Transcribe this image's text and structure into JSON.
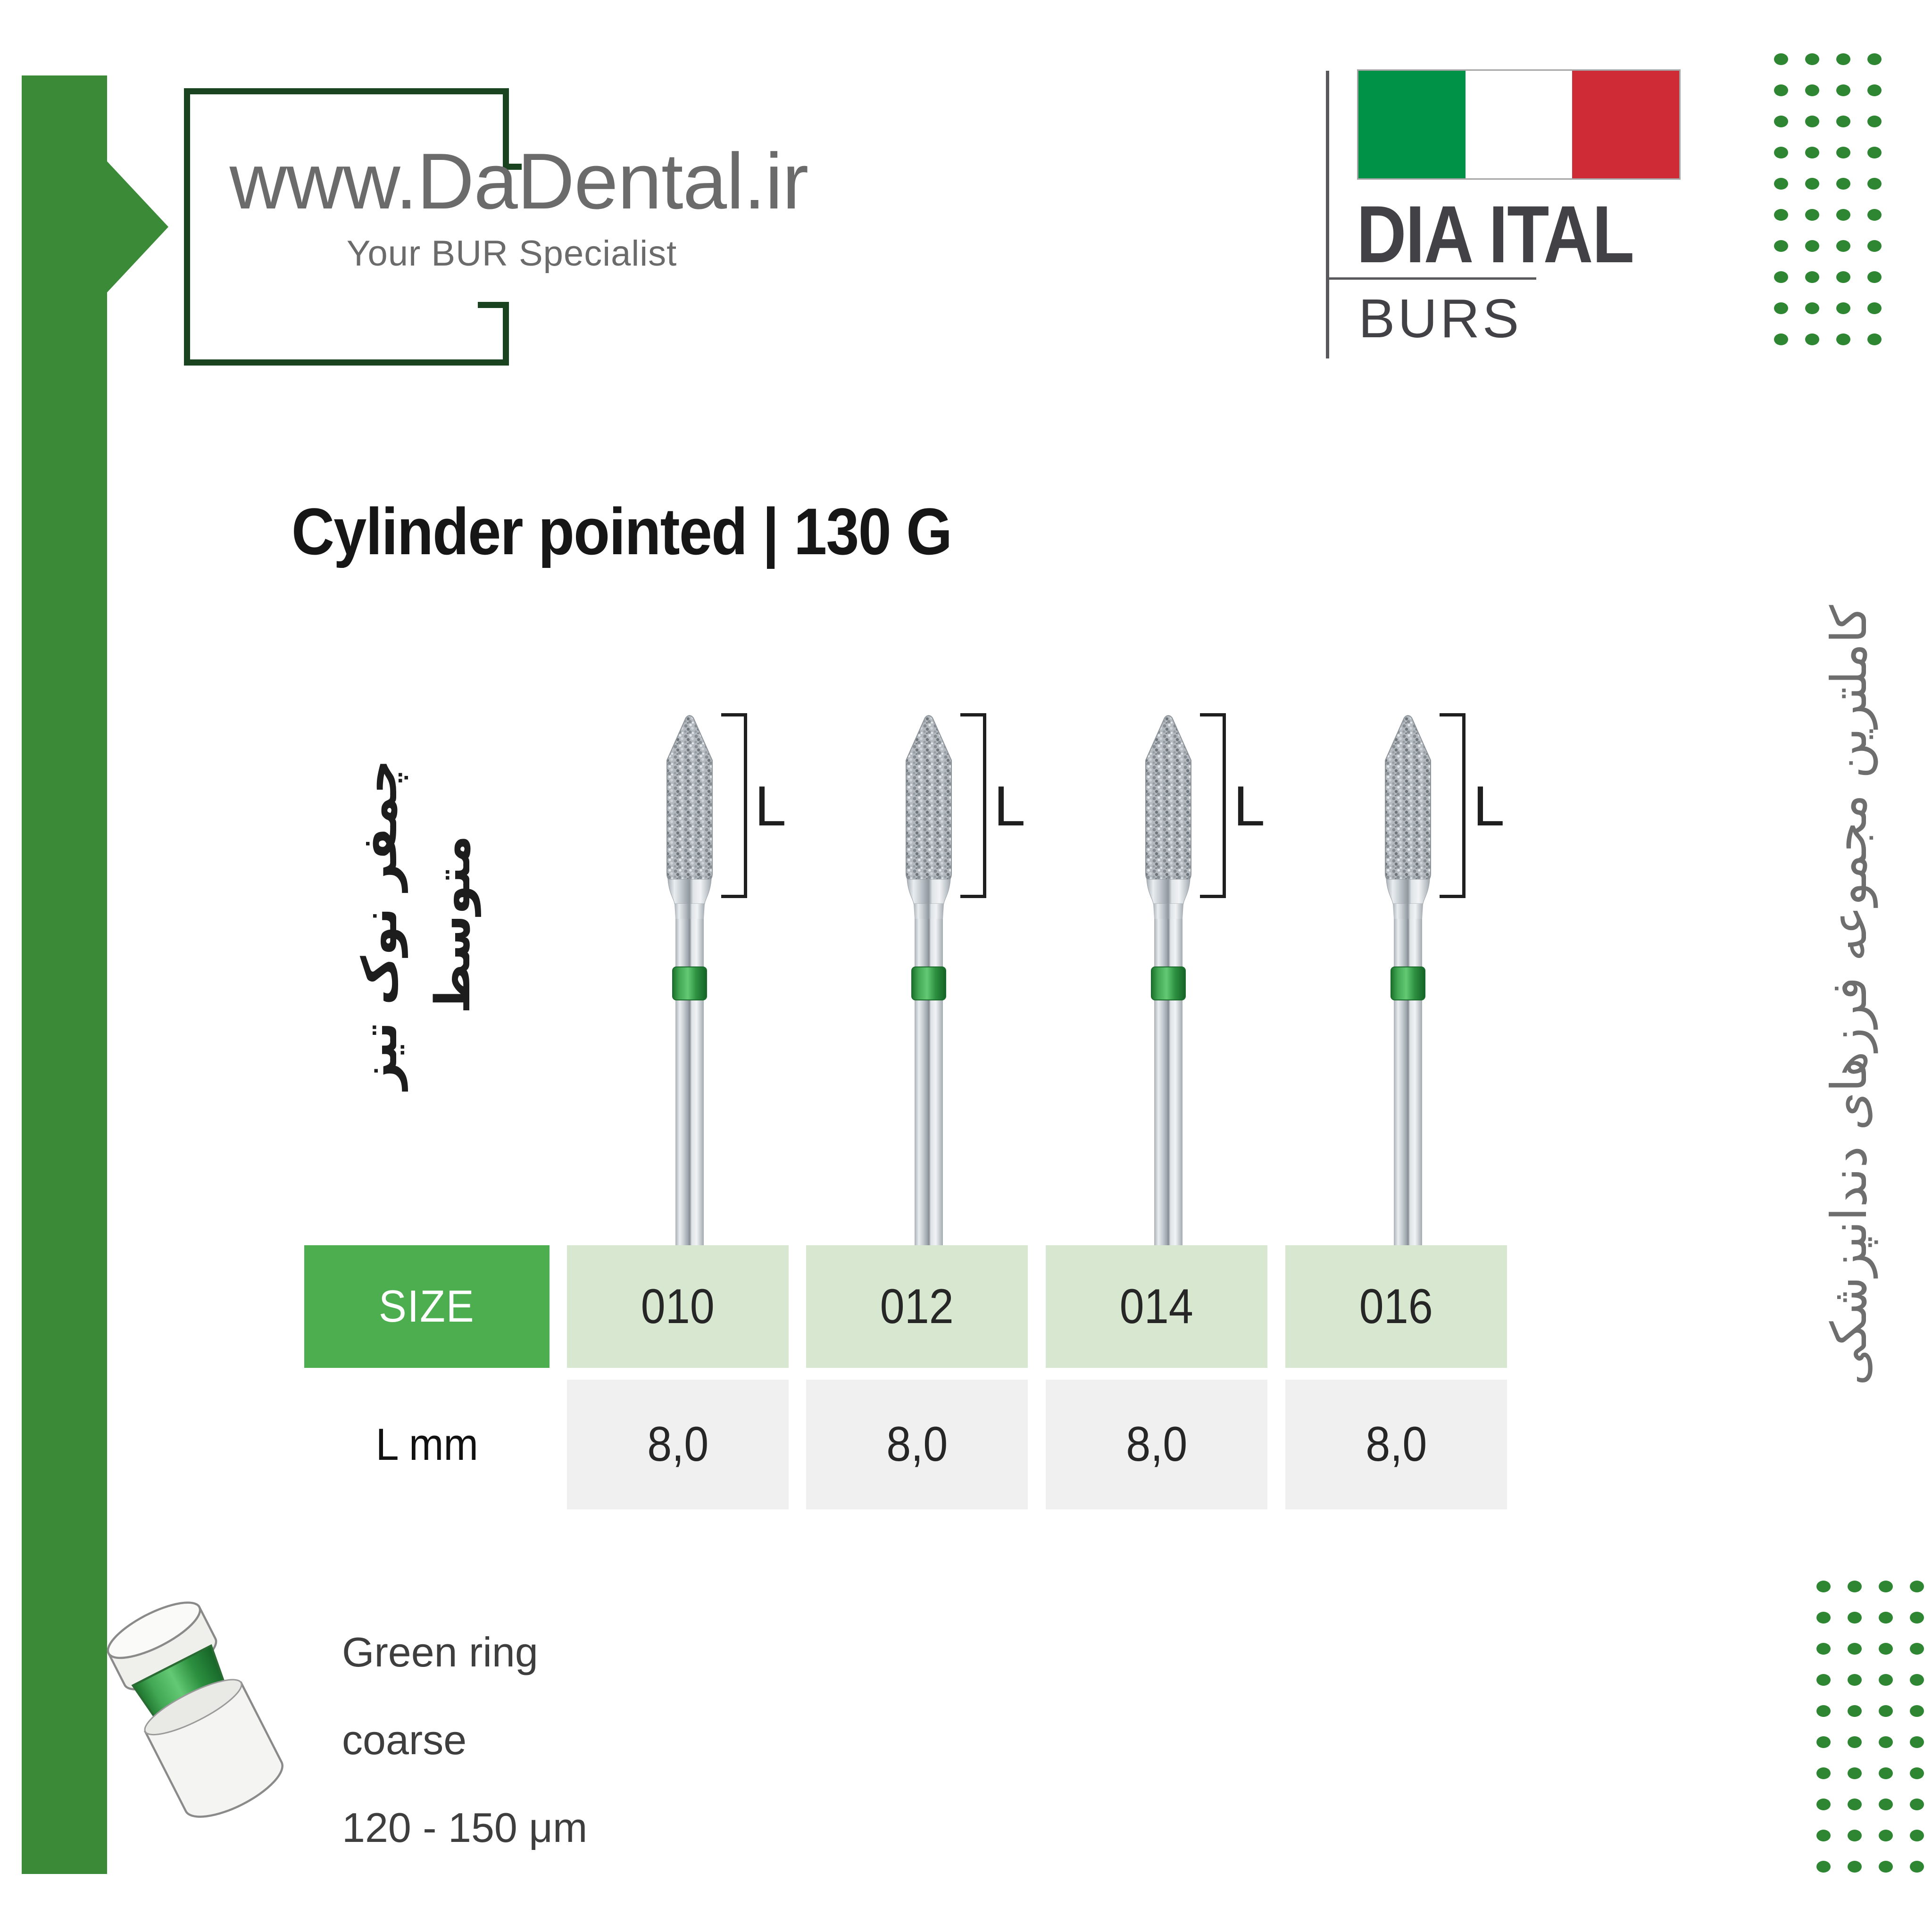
{
  "brand": {
    "website": "www.DaDental.ir",
    "tagline": "Your BUR Specialist",
    "logo_name": "DIA ITAL",
    "logo_sub": "BURS"
  },
  "title": "Cylinder pointed | 130 G",
  "bur_label_fa": {
    "line1": "چمفر نوک تیز",
    "line2": "متوسط"
  },
  "side_text_fa": "کاملترین مجموعه فرزهای دندانپزشکی",
  "length_symbol": "L",
  "table": {
    "size_header": "SIZE",
    "length_header": "L mm",
    "sizes": [
      "010",
      "012",
      "014",
      "016"
    ],
    "lengths": [
      "8,0",
      "8,0",
      "8,0",
      "8,0"
    ]
  },
  "legend": {
    "line1": "Green ring",
    "line2": "coarse",
    "line3": "120 - 150 μm"
  },
  "colors": {
    "ribbon_green": "#3a8a38",
    "frame_green": "#1a431f",
    "dot_green": "#2e8633",
    "table_header_green": "#4cae4f",
    "table_cell_green": "#d8e7cf",
    "table_cell_gray": "#f0f0f1",
    "flag_green": "#009247",
    "flag_red": "#cf2b36",
    "bur_ring_green": "#2e9041",
    "text_gray": "#6b6b6b",
    "logo_gray": "#424246"
  },
  "dots": {
    "rows": 10,
    "cols": 4,
    "pitch": 66
  }
}
